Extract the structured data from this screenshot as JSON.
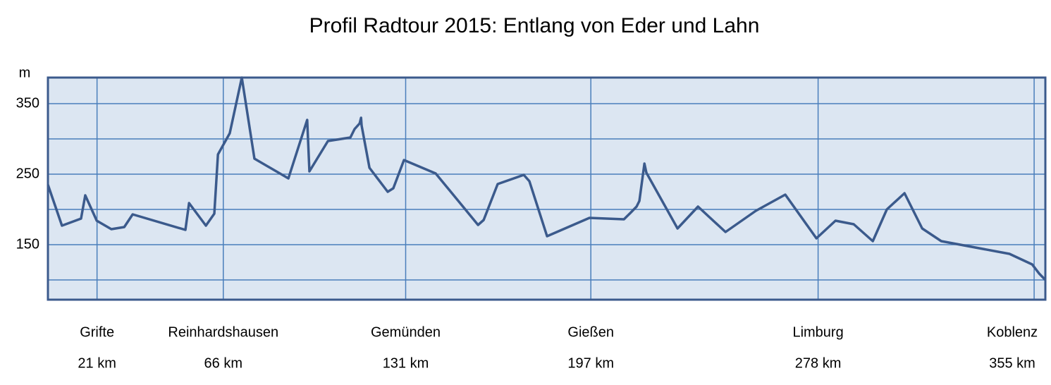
{
  "chart_data": {
    "type": "line",
    "title": "Profil Radtour 2015: Entlang von Eder und Lahn",
    "y_label": "m",
    "x": [
      3.5,
      8.5,
      15.3,
      16.8,
      20.9,
      26.1,
      30.7,
      33.7,
      52.5,
      53.8,
      59.8,
      62.8,
      64.1,
      68.3,
      72.6,
      77.1,
      89.2,
      95.9,
      96.7,
      103.3,
      111.3,
      112.8,
      114.6,
      115.1,
      115.3,
      118.1,
      124.6,
      126.6,
      130.4,
      141.7,
      156.8,
      158.8,
      163.8,
      173.1,
      175.1,
      181.4,
      196.5,
      208.8,
      211.1,
      213.3,
      214.3,
      216.1,
      216.8,
      227.9,
      235.2,
      245.0,
      255.8,
      266.3,
      277.4,
      284.2,
      290.7,
      297.5,
      302.5,
      308.8,
      315.1,
      321.9,
      346.2,
      354.3,
      356.8,
      359.0
    ],
    "series": [
      {
        "color": "#3b5a8c",
        "values": [
          235,
          177,
          187,
          220,
          184,
          172,
          175,
          193,
          171,
          209,
          177,
          194,
          278,
          308,
          387,
          272,
          244,
          327,
          254,
          297,
          302,
          314,
          322,
          330,
          319,
          259,
          225,
          230,
          270,
          251,
          178,
          185,
          236,
          249,
          240,
          162,
          188,
          186,
          195,
          204,
          212,
          265,
          252,
          173,
          204,
          168,
          198,
          221,
          159,
          184,
          179,
          155,
          200,
          223,
          173,
          155,
          137,
          122,
          109,
          100
        ]
      }
    ],
    "xlim": [
      3.5,
      359
    ],
    "ylim": [
      72,
      387
    ],
    "yticks": [
      150,
      250,
      350
    ],
    "minor_yticks": [
      100,
      200,
      300
    ],
    "grid": true,
    "background": "#dce6f2",
    "grid_color": "#4a7ebb",
    "markers": [
      {
        "name": "Grifte",
        "km": 21,
        "label": "21 km"
      },
      {
        "name": "Reinhardshausen",
        "km": 66,
        "label": "66 km"
      },
      {
        "name": "Gemünden",
        "km": 131,
        "label": "131 km"
      },
      {
        "name": "Gießen",
        "km": 197,
        "label": "197 km"
      },
      {
        "name": "Limburg",
        "km": 278,
        "label": "278 km"
      },
      {
        "name": "Koblenz",
        "km": 355,
        "label": "355 km"
      }
    ]
  }
}
